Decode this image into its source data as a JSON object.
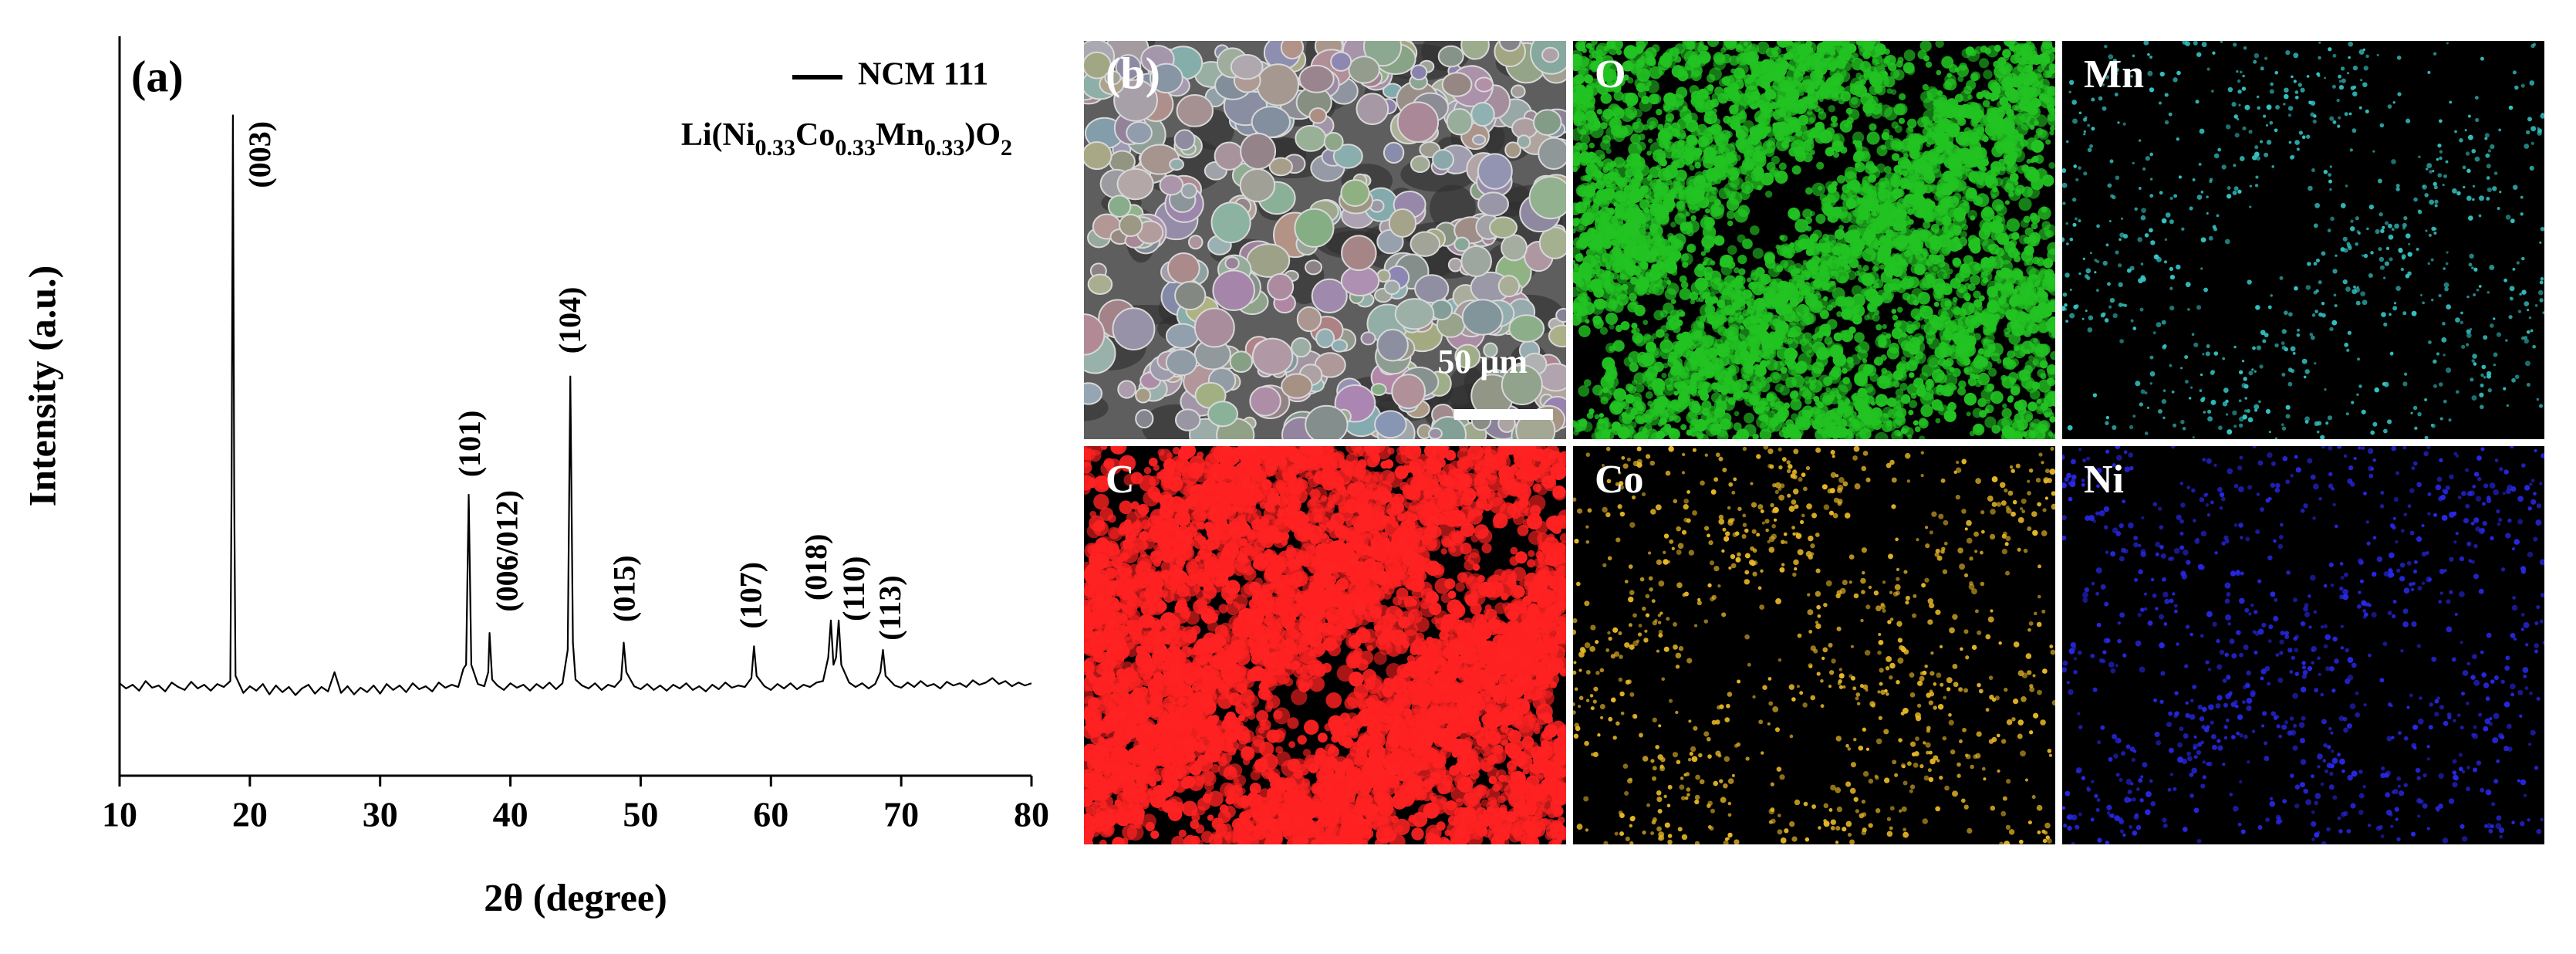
{
  "chart_data": {
    "type": "line",
    "panel_label": "(a)",
    "x_label": "2θ (degree)",
    "y_label": "Intensity (a.u.)",
    "xlim": [
      10,
      80
    ],
    "xticks": [
      10,
      20,
      30,
      40,
      50,
      60,
      70,
      80
    ],
    "ylim": [
      0,
      100
    ],
    "x": [
      10,
      10.5,
      11,
      11.5,
      12,
      12.5,
      13,
      13.5,
      14,
      14.5,
      15,
      15.5,
      16,
      16.5,
      17,
      17.5,
      18,
      18.5,
      18.6,
      18.7,
      18.8,
      18.9,
      19.5,
      20,
      20.5,
      21,
      21.5,
      22,
      22.5,
      23,
      23.5,
      24,
      24.5,
      25,
      25.5,
      26,
      26.5,
      27,
      27.5,
      28,
      28.5,
      29,
      29.5,
      30,
      30.5,
      31,
      31.5,
      32,
      32.5,
      33,
      33.5,
      34,
      34.5,
      35,
      35.5,
      36,
      36.4,
      36.6,
      36.8,
      37,
      37.5,
      38,
      38.3,
      38.4,
      38.6,
      39,
      39.5,
      40,
      40.5,
      41,
      41.5,
      42,
      42.5,
      43,
      43.5,
      44,
      44.4,
      44.6,
      44.8,
      45,
      45.5,
      46,
      46.5,
      47,
      47.5,
      48,
      48.5,
      48.7,
      48.9,
      49.5,
      50,
      50.5,
      51,
      51.5,
      52,
      52.5,
      53,
      53.5,
      54,
      54.5,
      55,
      55.5,
      56,
      56.5,
      57,
      57.5,
      58,
      58.5,
      58.7,
      58.9,
      59.5,
      60,
      60.5,
      61,
      61.5,
      62,
      62.5,
      63,
      63.5,
      64,
      64.4,
      64.6,
      64.8,
      65,
      65.2,
      65.4,
      66,
      66.5,
      67,
      67.5,
      68,
      68.4,
      68.6,
      68.8,
      69.5,
      70,
      70.5,
      71,
      71.5,
      72,
      72.5,
      73,
      73.5,
      74,
      74.5,
      75,
      75.5,
      76,
      76.5,
      77,
      77.5,
      78,
      78.5,
      79,
      79.5,
      80
    ],
    "series": [
      {
        "name": "NCM 111",
        "color": "#000000",
        "values": [
          12.5,
          11.8,
          12.3,
          11.5,
          12.8,
          11.9,
          12.2,
          11.4,
          12.6,
          12.0,
          11.6,
          12.7,
          11.8,
          12.3,
          11.5,
          12.4,
          12.0,
          12.8,
          40,
          89.3,
          38,
          13.5,
          11.2,
          12.1,
          11.5,
          12.4,
          11.0,
          12.2,
          11.3,
          12.0,
          10.9,
          11.8,
          12.3,
          11.1,
          12.0,
          11.4,
          14.0,
          11.2,
          12.1,
          11.0,
          11.9,
          11.3,
          12.2,
          11.1,
          12.4,
          11.6,
          12.2,
          11.3,
          12.5,
          11.7,
          12.1,
          11.4,
          12.6,
          11.9,
          12.3,
          12.0,
          14.5,
          15,
          38,
          15,
          12.4,
          12.1,
          14,
          19.3,
          13,
          12.2,
          11.6,
          12.5,
          11.9,
          12.3,
          11.5,
          12.4,
          11.8,
          12.6,
          11.7,
          12.5,
          17,
          54,
          18,
          13,
          12.2,
          11.8,
          12.5,
          11.6,
          12.3,
          12.0,
          13.0,
          18,
          14,
          12.1,
          11.7,
          12.4,
          11.6,
          12.2,
          11.5,
          12.3,
          11.8,
          12.5,
          11.6,
          12.1,
          11.4,
          12.3,
          11.7,
          12.6,
          11.9,
          12.2,
          12.0,
          13.2,
          17.5,
          13.5,
          12.1,
          11.6,
          12.4,
          11.8,
          12.5,
          11.7,
          12.3,
          12.0,
          12.6,
          12.8,
          16,
          21,
          15,
          16,
          21,
          15,
          12.6,
          12.0,
          12.5,
          11.8,
          12.4,
          14,
          17,
          13.5,
          12.2,
          11.9,
          12.6,
          12.0,
          12.8,
          12.1,
          12.4,
          11.8,
          12.7,
          12.2,
          12.5,
          12.0,
          12.9,
          12.3,
          12.6,
          13.2,
          12.4,
          12.8,
          12.1,
          12.6,
          12.2,
          12.5
        ]
      }
    ],
    "legend_formula": [
      "Li(Ni",
      "0.33",
      "Co",
      "0.33",
      "Mn",
      "0.33",
      ")O",
      "2"
    ],
    "annotations": [
      {
        "label": "(003)",
        "x": 21.0,
        "y": 84
      },
      {
        "label": "(101)",
        "x": 37.1,
        "y": 44.9
      },
      {
        "label": "(006/012)",
        "x": 40.0,
        "y": 30.4
      },
      {
        "label": "(104)",
        "x": 44.8,
        "y": 61.6
      },
      {
        "label": "(015)",
        "x": 49.0,
        "y": 25.3
      },
      {
        "label": "(107)",
        "x": 58.7,
        "y": 24.4
      },
      {
        "label": "(018)",
        "x": 63.7,
        "y": 28.2
      },
      {
        "label": "(110)",
        "x": 66.6,
        "y": 25.3
      },
      {
        "label": "(113)",
        "x": 69.4,
        "y": 22.7
      }
    ]
  },
  "panel_b": {
    "label": "(b)",
    "scale_bar": "50 μm",
    "maps": [
      {
        "label": "O",
        "color": "#22c322"
      },
      {
        "label": "Mn",
        "color": "#35c4c4"
      },
      {
        "label": "C",
        "color": "#ff2222"
      },
      {
        "label": "Co",
        "color": "#e8b828"
      },
      {
        "label": "Ni",
        "color": "#2828e8"
      }
    ]
  }
}
